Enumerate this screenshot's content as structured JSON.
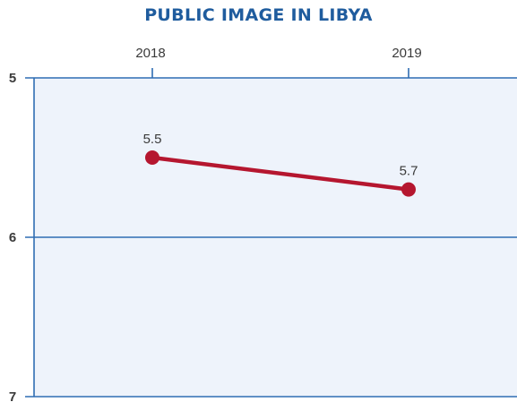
{
  "chart_data": {
    "type": "line",
    "title": "PUBLIC IMAGE IN LIBYA",
    "xlabel": "",
    "ylabel": "",
    "categories": [
      "2018",
      "2019"
    ],
    "x_axis_position": "top",
    "y_axis_inverted": true,
    "ylim": [
      5,
      7
    ],
    "yticks": [
      "5",
      "6",
      "7"
    ],
    "grid": true,
    "legend": "none",
    "series": [
      {
        "values": [
          5.5,
          5.7
        ],
        "data_labels": [
          "5.5",
          "5.7"
        ],
        "color": "#b5162f"
      }
    ]
  },
  "colors": {
    "title": "#1f5c9e",
    "axis": "#2f6db3",
    "tick_label": "#3a3a3a",
    "plot_background": "#eef3fb",
    "line": "#b5162f"
  }
}
